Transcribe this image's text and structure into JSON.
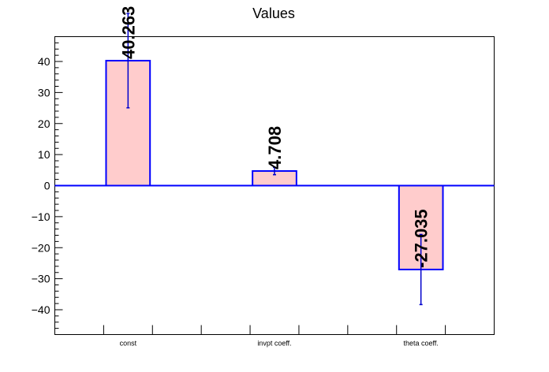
{
  "chart_data": {
    "type": "bar",
    "title": "Values",
    "categories": [
      "const",
      "invpt coeff.",
      "theta coeff."
    ],
    "values": [
      40.263,
      4.708,
      -27.035
    ],
    "value_labels": [
      "40.263",
      "4.708",
      "-27.035"
    ],
    "errors": [
      15.2,
      1.2,
      11.3
    ],
    "ylim": [
      -48,
      48
    ],
    "yticks": [
      -40,
      -30,
      -20,
      -10,
      0,
      10,
      20,
      30,
      40
    ],
    "ytick_labels": [
      "−40",
      "−30",
      "−20",
      "−10",
      "0",
      "10",
      "20",
      "30",
      "40"
    ],
    "xlabel": "",
    "ylabel": "",
    "grid": false,
    "colors": {
      "bar_fill": "#ffcccc",
      "bar_edge": "#0000ff",
      "error_bar": "#0000cc",
      "axis": "#000000"
    }
  }
}
